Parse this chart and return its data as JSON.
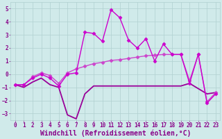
{
  "line1_wiggly": {
    "x": [
      0,
      1,
      2,
      3,
      4,
      5,
      6,
      7,
      8,
      9,
      10,
      11,
      12,
      13,
      14,
      15,
      16,
      17,
      18,
      19,
      20,
      21,
      22,
      23
    ],
    "y": [
      -0.8,
      -1.0,
      -0.6,
      -0.3,
      -0.8,
      -1.0,
      -3.1,
      -3.4,
      -1.5,
      -0.9,
      -0.9,
      -0.9,
      -0.9,
      -0.9,
      -0.9,
      -0.9,
      -0.9,
      -0.9,
      -0.9,
      -0.9,
      -0.7,
      -1.1,
      -1.5,
      -1.4
    ],
    "color": "#990099",
    "marker": null,
    "markersize": 0,
    "linewidth": 1.3
  },
  "line2_rising": {
    "x": [
      0,
      1,
      2,
      3,
      4,
      5,
      6,
      7,
      8,
      9,
      10,
      11,
      12,
      13,
      14,
      15,
      16,
      17,
      18,
      19,
      20,
      21,
      22,
      23
    ],
    "y": [
      -0.8,
      -0.8,
      -0.3,
      0.0,
      -0.3,
      -0.9,
      0.0,
      0.1,
      3.2,
      3.1,
      2.5,
      4.9,
      4.3,
      2.6,
      2.0,
      2.7,
      1.0,
      2.3,
      1.5,
      1.5,
      -0.7,
      1.5,
      -2.2,
      -1.5
    ],
    "color": "#cc00cc",
    "marker": "D",
    "markersize": 2.5,
    "linewidth": 1.0
  },
  "line3_smooth": {
    "x": [
      0,
      1,
      2,
      3,
      4,
      5,
      6,
      7,
      8,
      9,
      10,
      11,
      12,
      13,
      14,
      15,
      16,
      17,
      18,
      19,
      20,
      21,
      22,
      23
    ],
    "y": [
      -0.8,
      -0.8,
      -0.2,
      0.1,
      -0.1,
      -0.7,
      0.1,
      0.4,
      0.6,
      0.8,
      0.9,
      1.05,
      1.1,
      1.2,
      1.3,
      1.4,
      1.45,
      1.5,
      1.5,
      1.5,
      -0.5,
      1.5,
      -2.1,
      -1.4
    ],
    "color": "#cc44cc",
    "marker": "D",
    "markersize": 2.5,
    "linewidth": 1.0
  },
  "xlabel": "Windchill (Refroidissement éolien,°C)",
  "xlim": [
    -0.5,
    23.5
  ],
  "ylim": [
    -3.5,
    5.5
  ],
  "yticks": [
    -3,
    -2,
    -1,
    0,
    1,
    2,
    3,
    4,
    5
  ],
  "xticks": [
    0,
    1,
    2,
    3,
    4,
    5,
    6,
    7,
    8,
    9,
    10,
    11,
    12,
    13,
    14,
    15,
    16,
    17,
    18,
    19,
    20,
    21,
    22,
    23
  ],
  "bg_color": "#d0eaea",
  "grid_color": "#b0d0d0",
  "font_color": "#880088",
  "tick_fontsize": 5.5,
  "xlabel_fontsize": 7.0
}
